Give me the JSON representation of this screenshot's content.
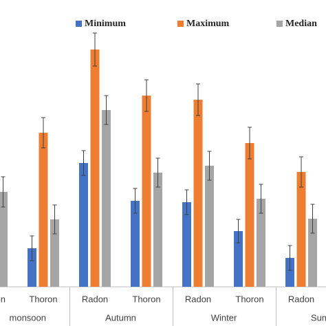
{
  "chart_data": {
    "type": "bar",
    "categories": [
      "n",
      "Thoron",
      "Radon",
      "Thoron",
      "Radon",
      "Thoron",
      "Radon"
    ],
    "groups": [
      "monsoon",
      "Autumn",
      "Winter",
      "Sum"
    ],
    "series": [
      {
        "name": "Minimum",
        "color": "#4472c4",
        "values": [
          null,
          56,
          180,
          125,
          123,
          81,
          42
        ],
        "errors": [
          null,
          18,
          18,
          18,
          18,
          17,
          18
        ]
      },
      {
        "name": "Maximum",
        "color": "#ed7d31",
        "values": [
          null,
          224,
          345,
          278,
          272,
          209,
          167
        ],
        "errors": [
          null,
          22,
          24,
          23,
          23,
          23,
          22
        ]
      },
      {
        "name": "Median",
        "color": "#a5a5a5",
        "values": [
          138,
          98,
          257,
          166,
          176,
          128,
          99
        ],
        "errors": [
          22,
          21,
          21,
          21,
          21,
          21,
          21
        ]
      }
    ],
    "ylim": [
      0,
      400
    ]
  }
}
